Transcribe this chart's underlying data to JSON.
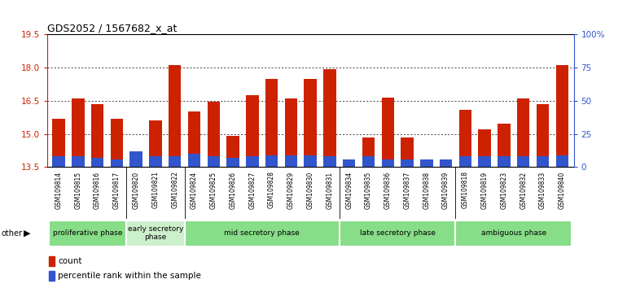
{
  "title": "GDS2052 / 1567682_x_at",
  "samples": [
    "GSM109814",
    "GSM109815",
    "GSM109816",
    "GSM109817",
    "GSM109820",
    "GSM109821",
    "GSM109822",
    "GSM109824",
    "GSM109825",
    "GSM109826",
    "GSM109827",
    "GSM109828",
    "GSM109829",
    "GSM109830",
    "GSM109831",
    "GSM109834",
    "GSM109835",
    "GSM109836",
    "GSM109837",
    "GSM109838",
    "GSM109839",
    "GSM109818",
    "GSM109819",
    "GSM109823",
    "GSM109832",
    "GSM109833",
    "GSM109840"
  ],
  "count_values": [
    15.7,
    16.6,
    16.35,
    15.7,
    13.6,
    15.6,
    18.1,
    16.0,
    16.45,
    14.9,
    16.75,
    17.5,
    16.6,
    17.5,
    17.95,
    13.65,
    14.85,
    16.65,
    14.85,
    13.65,
    13.65,
    16.1,
    15.2,
    15.45,
    16.6,
    16.35,
    18.1
  ],
  "percentile_values": [
    8,
    8,
    7,
    6,
    12,
    8,
    8,
    10,
    8,
    7,
    8,
    9,
    9,
    9,
    8,
    6,
    8,
    6,
    6,
    6,
    6,
    8,
    8,
    8,
    8,
    8,
    9
  ],
  "ymin": 13.5,
  "ymax": 19.5,
  "y2min": 0,
  "y2max": 100,
  "bar_color": "#cc2200",
  "percentile_color": "#3355cc",
  "phases": [
    {
      "label": "proliferative phase",
      "start": 0,
      "end": 4,
      "color": "#88dd88"
    },
    {
      "label": "early secretory\nphase",
      "start": 4,
      "end": 7,
      "color": "#ccf0cc"
    },
    {
      "label": "mid secretory phase",
      "start": 7,
      "end": 15,
      "color": "#88dd88"
    },
    {
      "label": "late secretory phase",
      "start": 15,
      "end": 21,
      "color": "#88dd88"
    },
    {
      "label": "ambiguous phase",
      "start": 21,
      "end": 27,
      "color": "#88dd88"
    }
  ],
  "yticks": [
    13.5,
    15.0,
    16.5,
    18.0,
    19.5
  ],
  "y2ticks": [
    0,
    25,
    50,
    75,
    100
  ],
  "y2tick_labels": [
    "0",
    "25",
    "50",
    "75",
    "100%"
  ],
  "bar_width": 0.65,
  "background_color": "#ffffff",
  "tick_area_color": "#d8d8d8"
}
